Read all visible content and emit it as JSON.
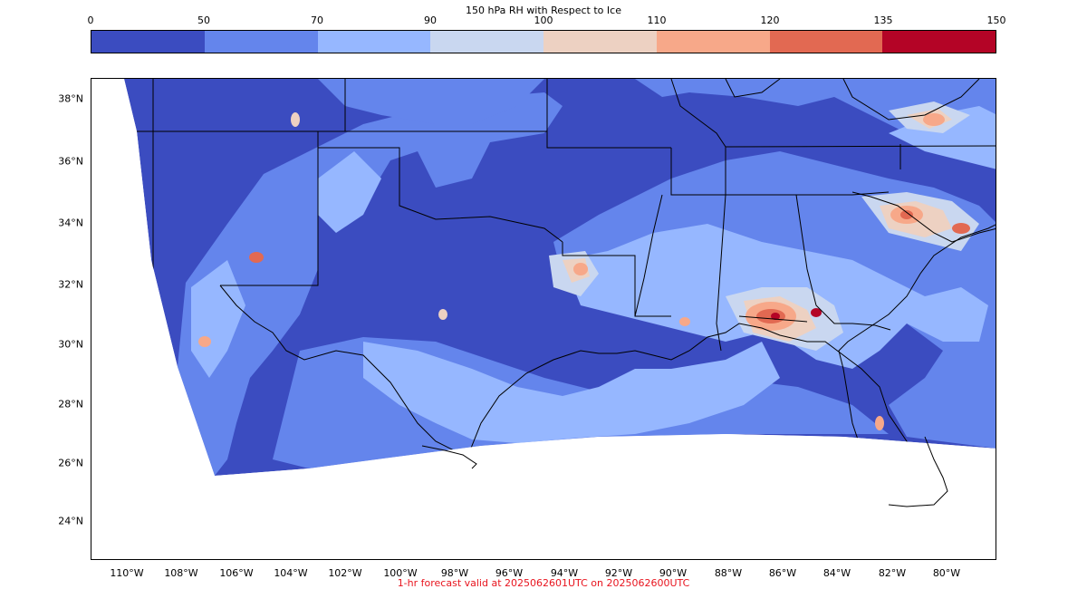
{
  "colorbar": {
    "title": "150 hPa RH with Respect to Ice",
    "ticks": [
      "0",
      "50",
      "70",
      "90",
      "100",
      "110",
      "120",
      "135",
      "150"
    ],
    "colors": [
      "#3b4cc0",
      "#6485ec",
      "#96b7ff",
      "#c9d7f0",
      "#edd1c2",
      "#f7a889",
      "#e26952",
      "#b40426"
    ]
  },
  "map": {
    "lat_labels": [
      "38°N",
      "36°N",
      "34°N",
      "32°N",
      "30°N",
      "28°N",
      "26°N",
      "24°N"
    ],
    "lon_labels": [
      "110°W",
      "108°W",
      "106°W",
      "104°W",
      "102°W",
      "100°W",
      "98°W",
      "96°W",
      "94°W",
      "92°W",
      "90°W",
      "88°W",
      "86°W",
      "84°W",
      "82°W",
      "80°W"
    ]
  },
  "footer": "1-hr forecast valid at 2025062601UTC on 2025062600UTC"
}
